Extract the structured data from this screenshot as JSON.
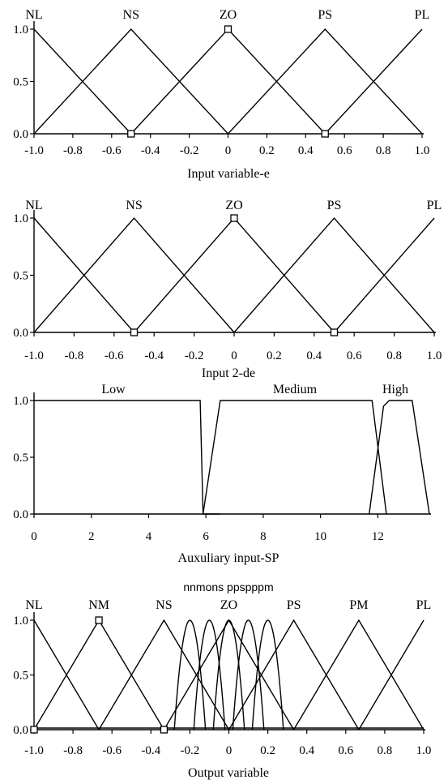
{
  "chart_data": [
    {
      "type": "line",
      "title": "",
      "xlabel": "Input variable-e",
      "ylabel": "",
      "xlim": [
        -1.0,
        1.0
      ],
      "ylim": [
        0,
        1.0
      ],
      "x_ticks": [
        "-1.0",
        "-0.8",
        "-0.6",
        "-0.4",
        "-0.2",
        "0",
        "0.2",
        "0.4",
        "0.6",
        "0.8",
        "1.0"
      ],
      "y_ticks": [
        "0.0",
        "0.5",
        "1.0"
      ],
      "sets": [
        {
          "name": "NL",
          "x": [
            -1.0,
            -0.5
          ],
          "y": [
            1,
            0
          ]
        },
        {
          "name": "NS",
          "x": [
            -1.0,
            -0.5,
            0.0
          ],
          "y": [
            0,
            1,
            0
          ]
        },
        {
          "name": "ZO",
          "x": [
            -0.5,
            0.0,
            0.5
          ],
          "y": [
            0,
            1,
            0
          ]
        },
        {
          "name": "PS",
          "x": [
            0.0,
            0.5,
            1.0
          ],
          "y": [
            0,
            1,
            0
          ]
        },
        {
          "name": "PL",
          "x": [
            0.5,
            1.0
          ],
          "y": [
            0,
            1
          ]
        }
      ],
      "markers": [
        {
          "x": 0.0,
          "y": 1.0
        },
        {
          "x": -0.5,
          "y": 0.0
        },
        {
          "x": 0.5,
          "y": 0.0
        }
      ]
    },
    {
      "type": "line",
      "title": "",
      "xlabel": "Input 2-de",
      "ylabel": "",
      "xlim": [
        -1.0,
        1.0
      ],
      "ylim": [
        0,
        1.0
      ],
      "x_ticks": [
        "-1.0",
        "-0.8",
        "-0.6",
        "-0.4",
        "-0.2",
        "0",
        "0.2",
        "0.4",
        "0.6",
        "0.8",
        "1.0"
      ],
      "y_ticks": [
        "0.0",
        "0.5",
        "1.0"
      ],
      "sets": [
        {
          "name": "NL",
          "x": [
            -1.0,
            -0.5
          ],
          "y": [
            1,
            0
          ]
        },
        {
          "name": "NS",
          "x": [
            -1.0,
            -0.5,
            0.0
          ],
          "y": [
            0,
            1,
            0
          ]
        },
        {
          "name": "ZO",
          "x": [
            -0.5,
            0.0,
            0.5
          ],
          "y": [
            0,
            1,
            0
          ]
        },
        {
          "name": "PS",
          "x": [
            0.0,
            0.5,
            1.0
          ],
          "y": [
            0,
            1,
            0
          ]
        },
        {
          "name": "PL",
          "x": [
            0.5,
            1.0
          ],
          "y": [
            0,
            1
          ]
        }
      ],
      "markers": [
        {
          "x": 0.0,
          "y": 1.0
        },
        {
          "x": -0.5,
          "y": 0.0
        },
        {
          "x": 0.5,
          "y": 0.0
        }
      ]
    },
    {
      "type": "line",
      "title": "",
      "xlabel": "Auxuliary input-SP",
      "ylabel": "",
      "xlim": [
        0,
        13.8
      ],
      "ylim": [
        0,
        1.0
      ],
      "x_ticks": [
        "0",
        "2",
        "4",
        "6",
        "8",
        "10",
        "12"
      ],
      "y_ticks": [
        "0.0",
        "0.5",
        "1.0"
      ],
      "sets": [
        {
          "name": "Low",
          "x": [
            0,
            5.8,
            5.9,
            6.5
          ],
          "y": [
            1,
            1,
            0,
            0
          ]
        },
        {
          "name": "Medium",
          "x": [
            5.9,
            6.5,
            11.8,
            12.3
          ],
          "y": [
            0,
            1,
            1,
            0
          ]
        },
        {
          "name": "High",
          "x": [
            11.7,
            12.2,
            12.4,
            13.2,
            13.8
          ],
          "y": [
            0,
            0.95,
            1,
            1,
            0
          ]
        }
      ],
      "markers": []
    },
    {
      "type": "line",
      "title": "nnmons ppspppm",
      "xlabel": "Output variable",
      "ylabel": "",
      "xlim": [
        -1.0,
        1.0
      ],
      "ylim": [
        0,
        1.0
      ],
      "x_ticks": [
        "-1.0",
        "-0.8",
        "-0.6",
        "-0.4",
        "-0.2",
        "0",
        "0.2",
        "0.4",
        "0.6",
        "0.8",
        "1.0"
      ],
      "y_ticks": [
        "0.0",
        "0.5",
        "1.0"
      ],
      "sets": [
        {
          "name": "NL",
          "x": [
            -1.0,
            -0.667
          ],
          "y": [
            1,
            0
          ]
        },
        {
          "name": "NM",
          "x": [
            -1.0,
            -0.667,
            -0.333
          ],
          "y": [
            0,
            1,
            0
          ]
        },
        {
          "name": "NS",
          "x": [
            -0.667,
            -0.333,
            0.0
          ],
          "y": [
            0,
            1,
            0
          ]
        },
        {
          "name": "ZO",
          "x": [
            -0.333,
            0.0,
            0.333
          ],
          "y": [
            0,
            1,
            0
          ]
        },
        {
          "name": "PS",
          "x": [
            0.0,
            0.333,
            0.667
          ],
          "y": [
            0,
            1,
            0
          ]
        },
        {
          "name": "PM",
          "x": [
            0.333,
            0.667,
            1.0
          ],
          "y": [
            0,
            1,
            0
          ]
        },
        {
          "name": "PL",
          "x": [
            0.667,
            1.0
          ],
          "y": [
            0,
            1
          ]
        }
      ],
      "bell_centers": [
        -0.2,
        -0.1,
        0.0,
        0.1,
        0.2
      ],
      "bell_halfwidth": 0.08,
      "baseline": {
        "x": [
          -1.0,
          -0.667,
          1.0
        ],
        "y": [
          0,
          0,
          0
        ]
      },
      "markers": [
        {
          "x": -0.667,
          "y": 1.0
        },
        {
          "x": -1.0,
          "y": 0.0
        },
        {
          "x": -0.333,
          "y": 0.0
        }
      ]
    }
  ]
}
